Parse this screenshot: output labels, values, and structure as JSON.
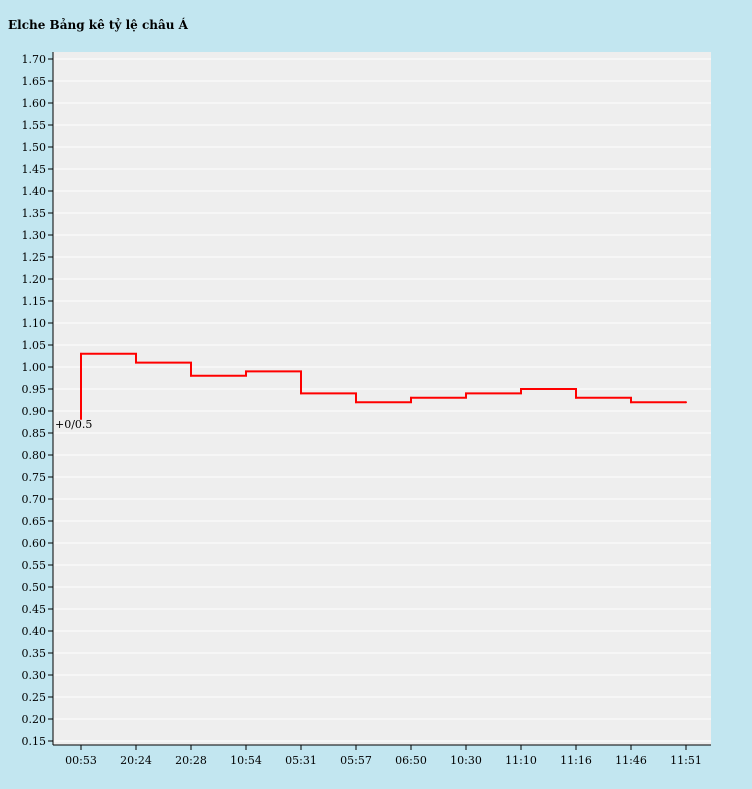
{
  "page": {
    "background": "#c2e6f0"
  },
  "chart_data": {
    "type": "line",
    "step": true,
    "title": "Elche Bảng kê tỷ lệ châu Á",
    "xlabel": "",
    "ylabel": "",
    "categories": [
      "00:53",
      "20:24",
      "20:28",
      "10:54",
      "05:31",
      "05:57",
      "06:50",
      "10:30",
      "11:10",
      "11:16",
      "11:46",
      "11:51"
    ],
    "series": [
      {
        "color": "#ff0000",
        "values": [
          1.03,
          1.01,
          0.98,
          0.99,
          0.94,
          0.92,
          0.93,
          0.94,
          0.95,
          0.93,
          0.92,
          0.92
        ]
      }
    ],
    "start_value": 0.88,
    "annotation": "+0/0.5",
    "ylim": [
      0.15,
      1.7
    ],
    "yticks": [
      "1.70",
      "1.65",
      "1.60",
      "1.55",
      "1.50",
      "1.45",
      "1.40",
      "1.35",
      "1.30",
      "1.25",
      "1.20",
      "1.15",
      "1.10",
      "1.05",
      "1.00",
      "0.95",
      "0.90",
      "0.85",
      "0.80",
      "0.75",
      "0.70",
      "0.65",
      "0.60",
      "0.55",
      "0.50",
      "0.45",
      "0.40",
      "0.35",
      "0.30",
      "0.25",
      "0.20",
      "0.15"
    ],
    "grid": true,
    "plot_background": "#eeeeee",
    "grid_color": "#ffffff"
  }
}
